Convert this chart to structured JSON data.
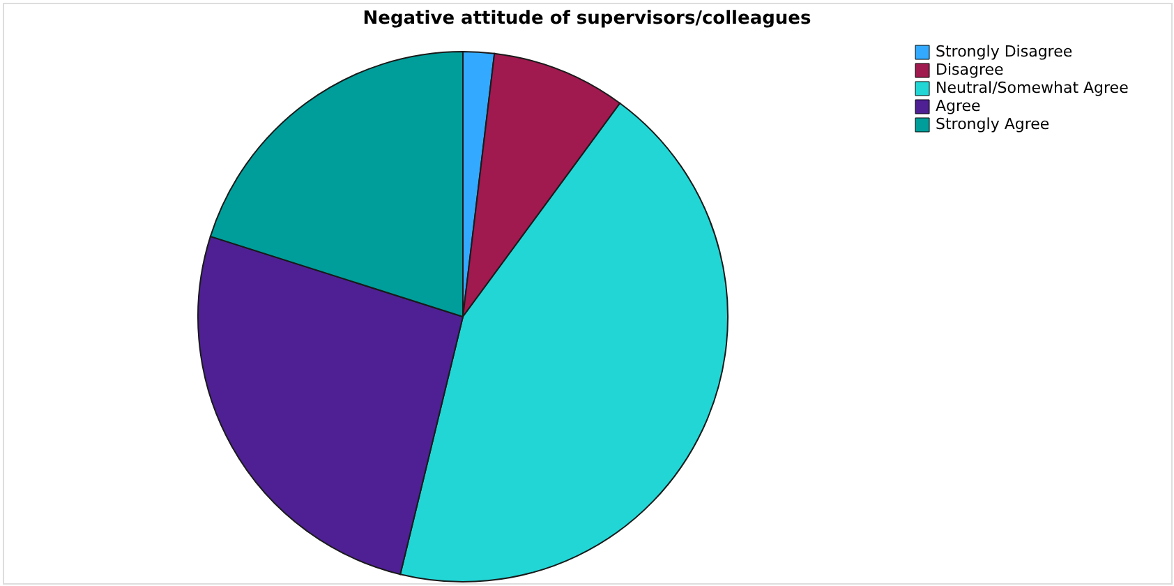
{
  "chart_data": {
    "type": "pie",
    "title": "Negative attitude of supervisors/colleagues",
    "categories": [
      "Strongly Disagree",
      "Disagree",
      "Neutral/Somewhat Agree",
      "Agree",
      "Strongly Agree"
    ],
    "values": [
      1.9,
      8.2,
      43.7,
      26.1,
      20.1
    ],
    "colors": [
      "#33aaff",
      "#a0194f",
      "#22d6d6",
      "#4e2094",
      "#009e9a"
    ],
    "legend": "top right"
  }
}
